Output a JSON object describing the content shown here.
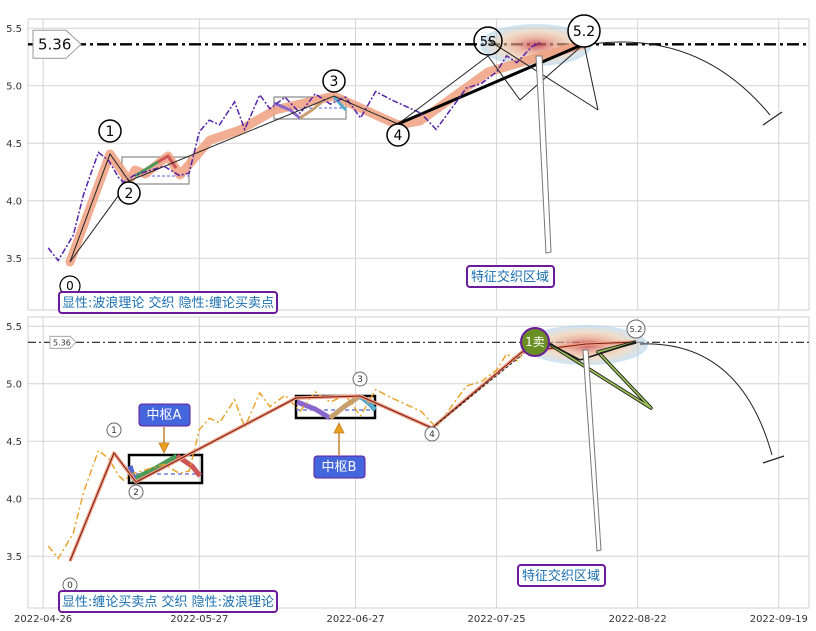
{
  "chart_data": [
    {
      "type": "line",
      "panel": "top",
      "ylim": [
        3.05,
        5.58
      ],
      "yticks": [
        "3.5",
        "4.0",
        "4.5",
        "5.0",
        "5.5"
      ],
      "ytick_values": [
        3.5,
        4.0,
        4.5,
        5.0,
        5.5
      ],
      "grid": true,
      "reference_line": {
        "value": 5.36,
        "label": "5.36"
      },
      "wave_points": [
        {
          "x": "2022-04-29",
          "y": 3.48,
          "label": "0"
        },
        {
          "x": "2022-05-07",
          "y": 4.42,
          "label": "1"
        },
        {
          "x": "2022-05-12",
          "y": 4.16,
          "label": "2"
        },
        {
          "x": "2022-06-30",
          "y": 4.92,
          "label": "3"
        },
        {
          "x": "2022-07-13",
          "y": 4.62,
          "label": "4"
        },
        {
          "x": "2022-08-03",
          "y": 5.38,
          "label": "5S"
        },
        {
          "x": "2022-08-13",
          "y": 5.47,
          "label": "5.2"
        }
      ],
      "price_series": [
        [
          "2022-04-27",
          3.59
        ],
        [
          "2022-04-29",
          3.48
        ],
        [
          "2022-05-02",
          3.7
        ],
        [
          "2022-05-04",
          4.05
        ],
        [
          "2022-05-06",
          4.3
        ],
        [
          "2022-05-07",
          4.42
        ],
        [
          "2022-05-09",
          4.35
        ],
        [
          "2022-05-11",
          4.2
        ],
        [
          "2022-05-12",
          4.16
        ],
        [
          "2022-05-14",
          4.22
        ],
        [
          "2022-05-17",
          4.26
        ],
        [
          "2022-05-20",
          4.3
        ],
        [
          "2022-05-23",
          4.22
        ],
        [
          "2022-05-25",
          4.24
        ],
        [
          "2022-05-27",
          4.6
        ],
        [
          "2022-05-29",
          4.7
        ],
        [
          "2022-05-31",
          4.66
        ],
        [
          "2022-06-03",
          4.86
        ],
        [
          "2022-06-05",
          4.62
        ],
        [
          "2022-06-08",
          4.92
        ],
        [
          "2022-06-10",
          4.8
        ],
        [
          "2022-06-13",
          4.9
        ],
        [
          "2022-06-16",
          4.76
        ],
        [
          "2022-06-19",
          4.93
        ],
        [
          "2022-06-22",
          4.84
        ],
        [
          "2022-06-25",
          4.9
        ],
        [
          "2022-06-28",
          4.72
        ],
        [
          "2022-07-01",
          4.95
        ],
        [
          "2022-07-04",
          4.88
        ],
        [
          "2022-07-07",
          4.82
        ],
        [
          "2022-07-10",
          4.76
        ],
        [
          "2022-07-13",
          4.62
        ],
        [
          "2022-07-16",
          4.8
        ],
        [
          "2022-07-19",
          4.98
        ],
        [
          "2022-07-22",
          5.02
        ],
        [
          "2022-07-25",
          5.12
        ],
        [
          "2022-07-27",
          5.26
        ],
        [
          "2022-07-29",
          5.2
        ],
        [
          "2022-08-01",
          5.34
        ],
        [
          "2022-08-03",
          5.38
        ]
      ],
      "annotation": "特征交织区域",
      "caption": "显性:波浪理论 交织 隐性:缠论买卖点"
    },
    {
      "type": "line",
      "panel": "bottom",
      "ylim": [
        3.05,
        5.58
      ],
      "yticks": [
        "3.5",
        "4.0",
        "4.5",
        "5.0",
        "5.5"
      ],
      "ytick_values": [
        3.5,
        4.0,
        4.5,
        5.0,
        5.5
      ],
      "xticks": [
        "2022-04-26",
        "2022-05-27",
        "2022-06-27",
        "2022-07-25",
        "2022-08-22",
        "2022-09-19"
      ],
      "grid": true,
      "reference_line": {
        "value": 5.36,
        "label": "5.36"
      },
      "wave_points": [
        {
          "x": "2022-04-29",
          "y": 3.48,
          "label": "0"
        },
        {
          "x": "2022-05-07",
          "y": 4.42,
          "label": "1"
        },
        {
          "x": "2022-05-12",
          "y": 4.16,
          "label": "2"
        },
        {
          "x": "2022-06-30",
          "y": 4.92,
          "label": "3"
        },
        {
          "x": "2022-07-13",
          "y": 4.62,
          "label": "4"
        },
        {
          "x": "2022-08-24",
          "y": 5.38,
          "label": "5.2"
        }
      ],
      "zhongshu": [
        {
          "label": "中枢A",
          "x0": "2022-05-12",
          "x1": "2022-05-25",
          "y0": 4.16,
          "y1": 4.39
        },
        {
          "label": "中枢B",
          "x0": "2022-06-17",
          "x1": "2022-07-03",
          "y0": 4.72,
          "y1": 4.91
        }
      ],
      "sell_signal": {
        "label": "1卖",
        "x": "2022-08-02",
        "y": 5.38
      },
      "annotation": "特征交织区域",
      "caption": "显性:缠论买卖点 交织 隐性:波浪理论"
    }
  ],
  "colors": {
    "grid": "#d4d4d4",
    "accent_orange": "#e8a020",
    "wave_salmon": "#f0a080",
    "price_purple": "#5522aa",
    "caption_border": "#6a1a9a",
    "caption_text": "#1a6fb0",
    "label_box": "#4466dd",
    "sell_green": "#6a8e23"
  }
}
